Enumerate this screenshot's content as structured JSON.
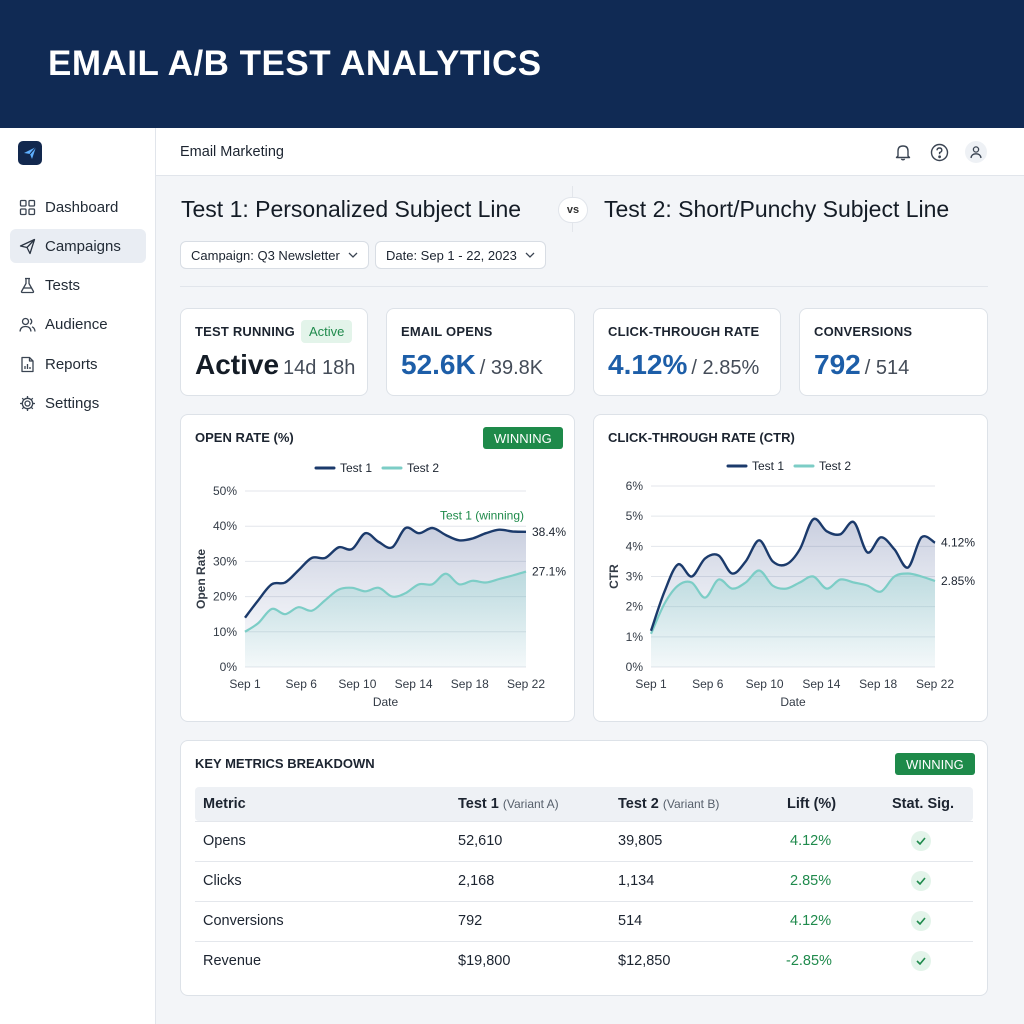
{
  "banner": {
    "title": "EMAIL A/B TEST ANALYTICS"
  },
  "sidebar": {
    "items": [
      {
        "label": "Dashboard",
        "icon": "grid-icon"
      },
      {
        "label": "Campaigns",
        "icon": "paper-plane-icon",
        "active": true
      },
      {
        "label": "Tests",
        "icon": "flask-icon"
      },
      {
        "label": "Audience",
        "icon": "users-icon"
      },
      {
        "label": "Reports",
        "icon": "report-icon"
      },
      {
        "label": "Settings",
        "icon": "gear-icon"
      }
    ]
  },
  "header": {
    "title": "Email Marketing",
    "icons": [
      "bell-icon",
      "help-icon",
      "user-icon"
    ]
  },
  "tests": {
    "test1_title": "Test 1: Personalized Subject Line",
    "vs": "vs",
    "test2_title": "Test 2: Short/Punchy Subject Line"
  },
  "filters": {
    "campaign": "Campaign: Q3 Newsletter",
    "date": "Date: Sep 1 - 22, 2023"
  },
  "stats": {
    "running": {
      "label": "TEST RUNNING",
      "badge": "Active",
      "value": "Active",
      "sub": "14d 18h"
    },
    "opens": {
      "label": "EMAIL OPENS",
      "value": "52.6K",
      "sub": "/ 39.8K"
    },
    "ctr": {
      "label": "CLICK-THROUGH RATE",
      "value": "4.12%",
      "sub": "/ 2.85%"
    },
    "conversions": {
      "label": "CONVERSIONS",
      "value": "792",
      "sub": "/ 514"
    }
  },
  "colors": {
    "test1": "#1b3a6b",
    "test2": "#7ccdc6",
    "winning": "#1e8a4a",
    "accent": "#1d5ea8"
  },
  "chart_data": [
    {
      "type": "line",
      "title": "OPEN RATE (%)",
      "badge": "WINNING",
      "xlabel": "Date",
      "ylabel": "Open Rate",
      "x_ticks": [
        "Sep 1",
        "Sep 6",
        "Sep 10",
        "Sep 14",
        "Sep 18",
        "Sep 22"
      ],
      "y_ticks": [
        "0%",
        "10%",
        "20%",
        "30%",
        "40%",
        "50%"
      ],
      "ylim": [
        0,
        50
      ],
      "x_range": [
        1,
        22
      ],
      "legend": "top-center",
      "annotation": "Test 1 (winning)",
      "series": [
        {
          "name": "Test 1",
          "end_label": "38.4%",
          "x": [
            1,
            2,
            3,
            4,
            5,
            6,
            7,
            8,
            9,
            10,
            11,
            12,
            13,
            14,
            15,
            16,
            17,
            18,
            19,
            20,
            21,
            22
          ],
          "values": [
            14,
            19,
            23.5,
            24,
            27.5,
            31,
            31,
            34,
            33.5,
            38,
            35.5,
            34,
            39.5,
            38,
            39.5,
            37.5,
            36,
            36.5,
            38,
            39,
            38.5,
            38.4
          ]
        },
        {
          "name": "Test 2",
          "end_label": "27.1%",
          "x": [
            1,
            2,
            3,
            4,
            5,
            6,
            7,
            8,
            9,
            10,
            11,
            12,
            13,
            14,
            15,
            16,
            17,
            18,
            19,
            20,
            21,
            22
          ],
          "values": [
            10,
            12.5,
            16.5,
            15,
            17,
            16,
            19,
            22,
            22.5,
            21.5,
            22.5,
            20,
            21,
            23.5,
            23.5,
            26.5,
            23.5,
            24.5,
            24,
            25,
            26,
            27.1
          ]
        }
      ]
    },
    {
      "type": "line",
      "title": "CLICK-THROUGH RATE (CTR)",
      "xlabel": "Date",
      "ylabel": "CTR",
      "x_ticks": [
        "Sep 1",
        "Sep 6",
        "Sep 10",
        "Sep 14",
        "Sep 18",
        "Sep 22"
      ],
      "y_ticks": [
        "0%",
        "1%",
        "2%",
        "3%",
        "4%",
        "5%",
        "6%"
      ],
      "ylim": [
        0,
        6
      ],
      "x_range": [
        1,
        22
      ],
      "legend": "top-center",
      "series": [
        {
          "name": "Test 1",
          "end_label": "4.12%",
          "x": [
            1,
            2,
            3,
            4,
            5,
            6,
            7,
            8,
            9,
            10,
            11,
            12,
            13,
            14,
            15,
            16,
            17,
            18,
            19,
            20,
            21,
            22
          ],
          "values": [
            1.2,
            2.5,
            3.4,
            3.0,
            3.6,
            3.7,
            3.1,
            3.5,
            4.2,
            3.5,
            3.4,
            3.9,
            4.9,
            4.5,
            4.4,
            4.8,
            3.8,
            4.3,
            3.9,
            3.3,
            4.3,
            4.12
          ]
        },
        {
          "name": "Test 2",
          "end_label": "2.85%",
          "x": [
            1,
            2,
            3,
            4,
            5,
            6,
            7,
            8,
            9,
            10,
            11,
            12,
            13,
            14,
            15,
            16,
            17,
            18,
            19,
            20,
            21,
            22
          ],
          "values": [
            1.1,
            2.1,
            2.7,
            2.8,
            2.3,
            2.9,
            2.6,
            2.8,
            3.2,
            2.7,
            2.6,
            2.8,
            3.0,
            2.6,
            2.9,
            2.8,
            2.7,
            2.5,
            3.0,
            3.1,
            3.0,
            2.85
          ]
        }
      ]
    }
  ],
  "metrics_table": {
    "title": "KEY METRICS BREAKDOWN",
    "badge": "WINNING",
    "columns": {
      "metric": "Metric",
      "test1": "Test 1",
      "test1_variant": "(Variant A)",
      "test2": "Test 2",
      "test2_variant": "(Variant B)",
      "lift": "Lift (%)",
      "sig": "Stat. Sig."
    },
    "rows": [
      {
        "metric": "Opens",
        "test1": "52,610",
        "test2": "39,805",
        "lift": "4.12%",
        "sig_icon": "check-icon"
      },
      {
        "metric": "Clicks",
        "test1": "2,168",
        "test2": "1,134",
        "lift": "2.85%",
        "sig_icon": "check-icon"
      },
      {
        "metric": "Conversions",
        "test1": "792",
        "test2": "514",
        "lift": "4.12%",
        "sig_icon": "check-icon"
      },
      {
        "metric": "Revenue",
        "test1": "$19,800",
        "test2": "$12,850",
        "lift": "-2.85%",
        "sig_icon": "check-icon"
      }
    ]
  }
}
